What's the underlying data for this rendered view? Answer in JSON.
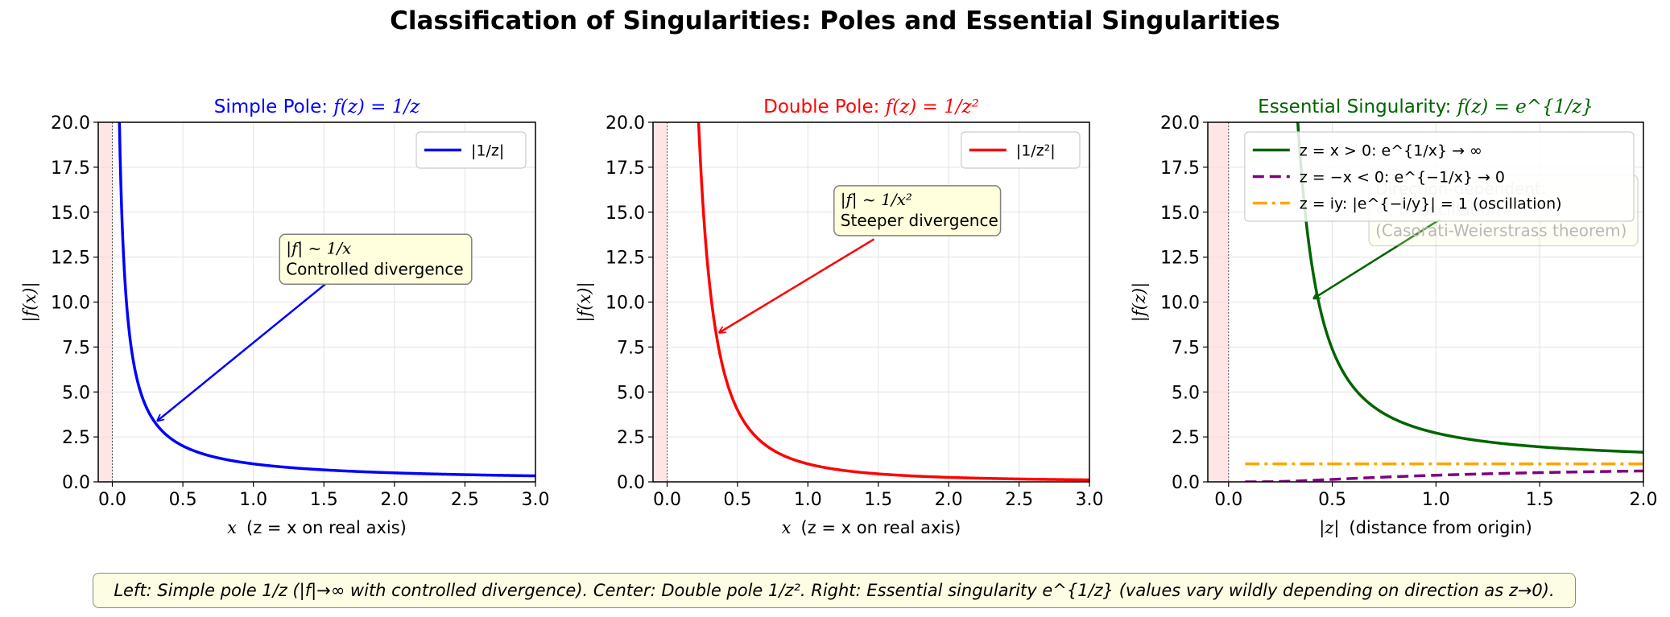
{
  "figure": {
    "title": "Classification of Singularities: Poles and Essential Singularities",
    "caption": "Left: Simple pole 1/z (|f|→∞ with controlled divergence). Center: Double pole 1/z². Right: Essential singularity e^{1/z} (values vary wildly depending on direction as z→0)."
  },
  "colors": {
    "simple": "#0000ff",
    "double": "#ff0000",
    "essential_pos": "#006400",
    "essential_neg": "#800080",
    "essential_imag": "#ffa500",
    "shade": "#ffd6d6",
    "annotation_bg": "#ffffdd"
  },
  "chart_data": [
    {
      "type": "line",
      "title_prefix": "Simple Pole: ",
      "title_math": "f(z) = 1/z",
      "title_color": "#0000ff",
      "xlabel_math": "x",
      "xlabel": "(z = x on real axis)",
      "ylabel": "|f(x)|",
      "xlim": [
        -0.1,
        3.0
      ],
      "ylim": [
        0,
        20
      ],
      "xticks": [
        0.0,
        0.5,
        1.0,
        1.5,
        2.0,
        2.5,
        3.0
      ],
      "yticks": [
        0.0,
        2.5,
        5.0,
        7.5,
        10.0,
        12.5,
        15.0,
        17.5,
        20.0
      ],
      "grid": true,
      "legend_placement": "top-right",
      "series": [
        {
          "name": "|1/z|",
          "function": "1/x",
          "x_range": [
            0.01,
            3.0
          ],
          "color": "#0000ff",
          "style": "solid"
        }
      ],
      "annotation": {
        "line1": "|f| ~ 1/x",
        "line2": "Controlled divergence",
        "text_at": [
          1.22,
          13.5
        ],
        "arrow_tail": [
          1.62,
          11.7
        ],
        "arrow_head": [
          0.32,
          3.4
        ]
      }
    },
    {
      "type": "line",
      "title_prefix": "Double Pole: ",
      "title_math": "f(z) = 1/z²",
      "title_color": "#ff0000",
      "xlabel_math": "x",
      "xlabel": "(z = x on real axis)",
      "ylabel": "|f(x)|",
      "xlim": [
        -0.1,
        3.0
      ],
      "ylim": [
        0,
        20
      ],
      "xticks": [
        0.0,
        0.5,
        1.0,
        1.5,
        2.0,
        2.5,
        3.0
      ],
      "yticks": [
        0.0,
        2.5,
        5.0,
        7.5,
        10.0,
        12.5,
        15.0,
        17.5,
        20.0
      ],
      "grid": true,
      "legend_placement": "top-right",
      "series": [
        {
          "name": "|1/z²|",
          "function": "1/x^2",
          "x_range": [
            0.01,
            3.0
          ],
          "color": "#ff0000",
          "style": "solid"
        }
      ],
      "annotation": {
        "line1": "|f| ~ 1/x²",
        "line2": "Steeper divergence",
        "text_at": [
          1.22,
          16.2
        ],
        "arrow_tail": [
          1.47,
          13.5
        ],
        "arrow_head": [
          0.37,
          8.3
        ]
      }
    },
    {
      "type": "line",
      "title_prefix": "Essential Singularity: ",
      "title_math": "f(z) = e^{1/z}",
      "title_color": "#006400",
      "xlabel_math": "|z|",
      "xlabel": "(distance from origin)",
      "ylabel": "|f(z)|",
      "xlim": [
        -0.1,
        2.0
      ],
      "ylim": [
        0,
        20
      ],
      "xticks": [
        0.0,
        0.5,
        1.0,
        1.5,
        2.0
      ],
      "yticks": [
        0.0,
        2.5,
        5.0,
        7.5,
        10.0,
        12.5,
        15.0,
        17.5,
        20.0
      ],
      "grid": true,
      "legend_placement": "top-right",
      "series": [
        {
          "name": "z = x > 0: e^{1/x} → ∞",
          "function": "exp(1/x)",
          "x_range": [
            0.05,
            2.0
          ],
          "color": "#006400",
          "style": "solid"
        },
        {
          "name": "z = −x < 0: e^{−1/x} → 0",
          "function": "exp(-1/x)",
          "x_range": [
            0.08,
            2.0
          ],
          "color": "#800080",
          "style": "dashed"
        },
        {
          "name": "z = iy: |e^{−i/y}| = 1 (oscillation)",
          "function": "1",
          "x_range": [
            0.08,
            2.0
          ],
          "color": "#ffa500",
          "style": "dashdot"
        }
      ],
      "annotation": {
        "line1": "Direction-dependent:",
        "line2": "∞, 0, oscillation",
        "line3": "(Casorati-Weierstrass theorem)",
        "text_at": [
          0.7,
          16.8
        ],
        "arrow_tail": [
          1.02,
          14.6
        ],
        "arrow_head": [
          0.41,
          10.2
        ]
      }
    }
  ]
}
